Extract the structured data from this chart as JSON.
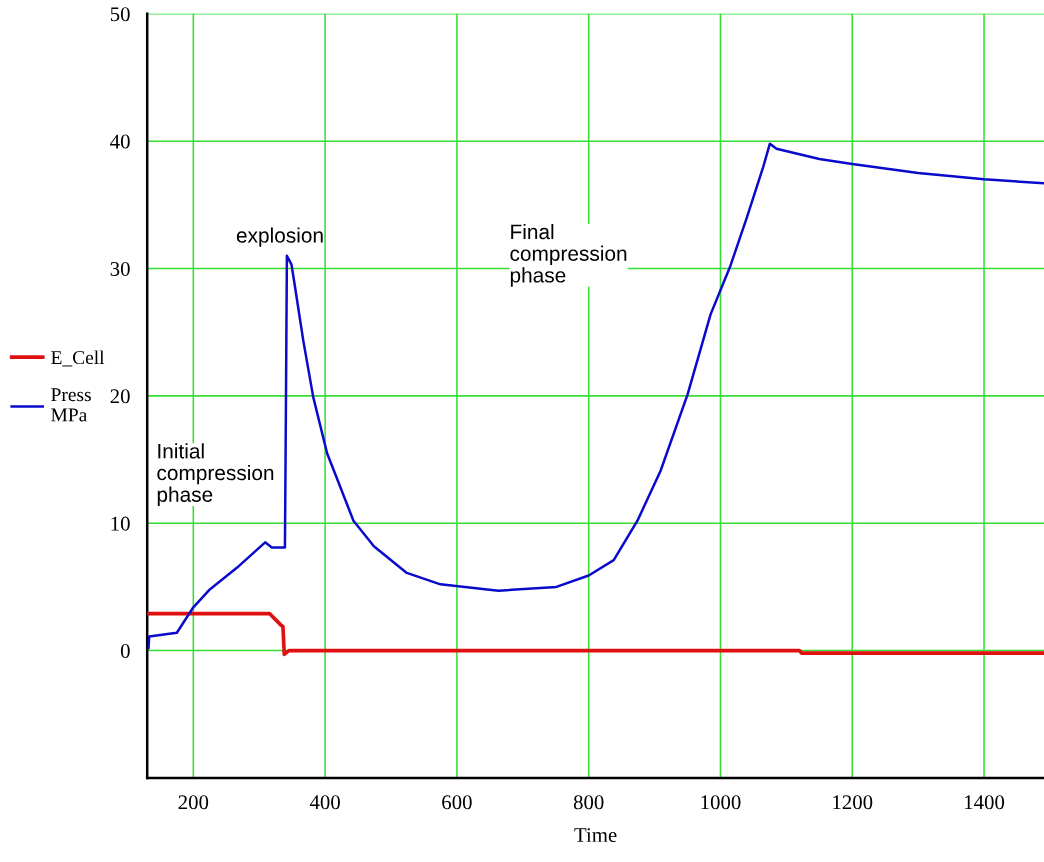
{
  "chart_data": {
    "type": "line",
    "xlabel": "Time",
    "x": [
      132,
      133,
      175,
      200,
      225,
      266,
      309,
      319,
      339,
      340,
      342,
      349,
      353,
      367,
      382,
      403,
      443,
      474,
      524,
      575,
      663,
      751,
      800,
      838,
      874,
      909,
      950,
      985,
      1015,
      1040,
      1065,
      1075,
      1085,
      1150,
      1200,
      1300,
      1400,
      1490
    ],
    "series": [
      {
        "name": "E_Cell",
        "color": "#e01010",
        "x": [
          132,
          316,
          333,
          336,
          338,
          345,
          1120,
          1123,
          1490
        ],
        "values": [
          2.9,
          2.9,
          2.0,
          1.9,
          -0.3,
          0,
          0,
          -0.2,
          -0.2
        ]
      },
      {
        "name": "Press\nMPa",
        "color": "#0a0acc",
        "values": [
          0.2,
          1.1,
          1.4,
          3.4,
          4.8,
          6.5,
          8.5,
          8.1,
          8.1,
          15,
          31,
          30.3,
          29.0,
          24.3,
          19.9,
          15.5,
          10.2,
          8.2,
          6.1,
          5.2,
          4.7,
          5.0,
          5.9,
          7.1,
          10.2,
          14.1,
          20.1,
          26.4,
          30.2,
          34,
          38,
          39.8,
          39.4,
          38.6,
          38.2,
          37.5,
          37.0,
          36.7
        ]
      }
    ],
    "xlim": [
      130,
      1491
    ],
    "ylim": [
      -10,
      50
    ],
    "xticks": [
      200,
      400,
      600,
      800,
      1000,
      1200,
      1400
    ],
    "yticks": [
      0,
      10,
      20,
      30,
      40,
      50
    ],
    "grid": true,
    "legend": "left",
    "marker": "none",
    "line_style": "solid",
    "annotations": [
      "Initial\ncompression\nphase",
      "explosion",
      "Final\ncompression\nphase"
    ]
  }
}
